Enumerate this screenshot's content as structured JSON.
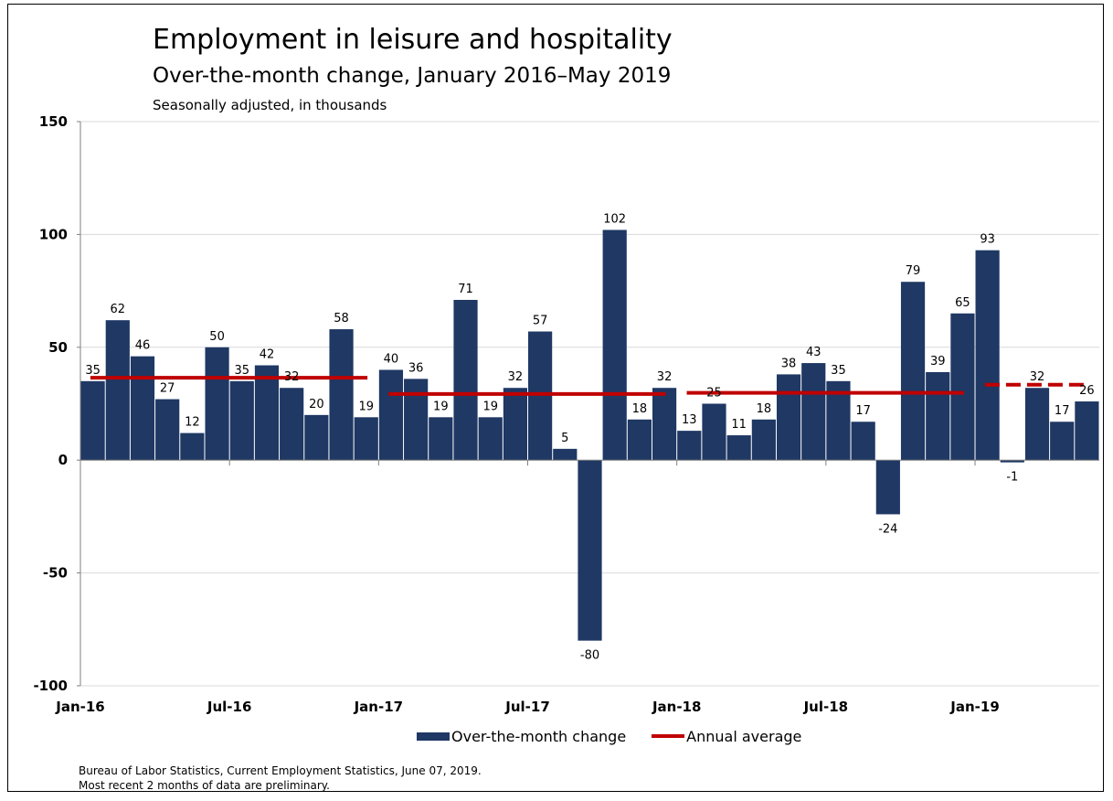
{
  "title": "Employment in leisure and hospitality",
  "subtitle": "Over-the-month change, January 2016–May 2019",
  "units_note": "Seasonally adjusted, in thousands",
  "footnotes": [
    "Bureau of Labor Statistics, Current Employment Statistics, June 07, 2019.",
    "Most recent 2 months of data are preliminary."
  ],
  "colors": {
    "bar": "#1f3864",
    "average": "#c00000",
    "grid": "#d9d9d9"
  },
  "chart_data": {
    "type": "bar",
    "categories": [
      "Jan-16",
      "Feb-16",
      "Mar-16",
      "Apr-16",
      "May-16",
      "Jun-16",
      "Jul-16",
      "Aug-16",
      "Sep-16",
      "Oct-16",
      "Nov-16",
      "Dec-16",
      "Jan-17",
      "Feb-17",
      "Mar-17",
      "Apr-17",
      "May-17",
      "Jun-17",
      "Jul-17",
      "Aug-17",
      "Sep-17",
      "Oct-17",
      "Nov-17",
      "Dec-17",
      "Jan-18",
      "Feb-18",
      "Mar-18",
      "Apr-18",
      "May-18",
      "Jun-18",
      "Jul-18",
      "Aug-18",
      "Sep-18",
      "Oct-18",
      "Nov-18",
      "Dec-18",
      "Jan-19",
      "Feb-19",
      "Mar-19",
      "Apr-19",
      "May-19"
    ],
    "series": [
      {
        "name": "Over-the-month change",
        "values": [
          35,
          62,
          46,
          27,
          12,
          50,
          35,
          42,
          32,
          20,
          58,
          19,
          40,
          36,
          19,
          71,
          19,
          32,
          57,
          5,
          -80,
          102,
          18,
          32,
          13,
          25,
          11,
          18,
          38,
          43,
          35,
          17,
          -24,
          79,
          39,
          65,
          93,
          -1,
          32,
          17,
          26
        ]
      }
    ],
    "annual_average": {
      "name": "Annual average",
      "segments": [
        {
          "year": "2016",
          "value": 36.5,
          "dashed": false
        },
        {
          "year": "2017",
          "value": 29.3,
          "dashed": false
        },
        {
          "year": "2018",
          "value": 29.8,
          "dashed": false
        },
        {
          "year": "2019",
          "value": 33.4,
          "dashed": true
        }
      ]
    },
    "x_tick_labels": [
      "Jan-16",
      "Jul-16",
      "Jan-17",
      "Jul-17",
      "Jan-18",
      "Jul-18",
      "Jan-19"
    ],
    "y_ticks": [
      -100,
      -50,
      0,
      50,
      100,
      150
    ],
    "ylim": [
      -100,
      150
    ],
    "grid": true,
    "legend_position": "bottom"
  }
}
